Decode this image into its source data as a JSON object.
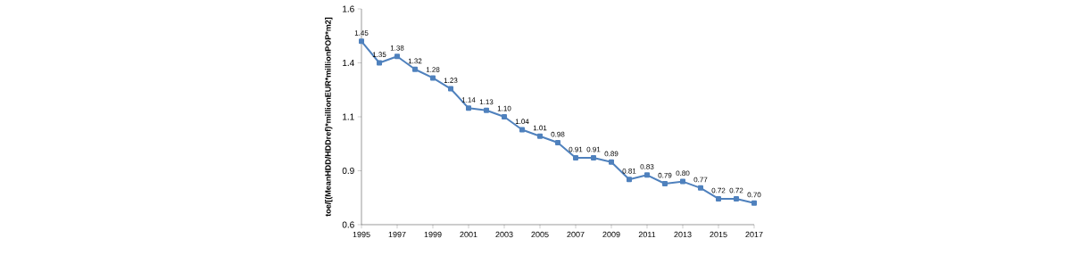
{
  "chart_data": {
    "type": "line",
    "ylabel": "toe/[(MeanHDD/HDDref)*millionEUR*millionPOP*m2]",
    "x": [
      1995,
      1996,
      1997,
      1998,
      1999,
      2000,
      2001,
      2002,
      2003,
      2004,
      2005,
      2006,
      2007,
      2008,
      2009,
      2010,
      2011,
      2012,
      2013,
      2014,
      2015,
      2016,
      2017
    ],
    "series": [
      {
        "color": "#4f81bd",
        "values": [
          1.45,
          1.35,
          1.38,
          1.32,
          1.28,
          1.23,
          1.14,
          1.13,
          1.1,
          1.04,
          1.01,
          0.98,
          0.91,
          0.91,
          0.89,
          0.81,
          0.83,
          0.79,
          0.8,
          0.77,
          0.72,
          0.72,
          0.7
        ]
      }
    ],
    "xlim": [
      1995,
      2017
    ],
    "xticks": [
      1995,
      1997,
      1999,
      2001,
      2003,
      2005,
      2007,
      2009,
      2011,
      2013,
      2015,
      2017
    ],
    "ylim": [
      0.6,
      1.6
    ],
    "yticks": [
      0.6,
      {
        "value": 0.85,
        "label": "0.9"
      },
      1.1,
      {
        "value": 1.35,
        "label": "1.4"
      },
      1.6
    ],
    "value_labels": [
      "1.45",
      "1.35",
      "1.38",
      "1.32",
      "1.28",
      "1.23",
      "1.14",
      "1.13",
      "1.10",
      "1.04",
      "1.01",
      "0.98",
      "0.91",
      "0.91",
      "0.89",
      "0.81",
      "0.83",
      "0.79",
      "0.80",
      "0.77",
      "0.72",
      "0.72",
      "0.70"
    ],
    "marker": "square",
    "line_style": "solid",
    "grid": false
  }
}
